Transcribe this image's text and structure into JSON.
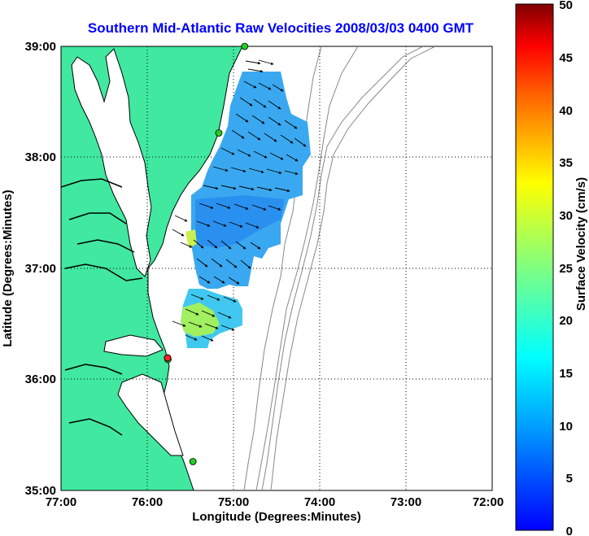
{
  "title": "Southern Mid-Atlantic Raw Velocities 2008/03/03 0400 GMT",
  "xlabel": "Longitude (Degrees:Minutes)",
  "ylabel": "Latitude (Degrees:Minutes)",
  "colorbar": {
    "label": "Surface Velocity (cm/s)",
    "range": [
      0,
      50
    ],
    "ticks": [
      "0",
      "5",
      "10",
      "15",
      "20",
      "25",
      "30",
      "35",
      "40",
      "45",
      "50"
    ]
  },
  "axes": {
    "x_ticks": [
      "77:00",
      "76:00",
      "75:00",
      "74:00",
      "73:00",
      "72:00"
    ],
    "y_ticks": [
      "39:00",
      "38:00",
      "37:00",
      "36:00",
      "35:00"
    ],
    "lon_range": [
      -77,
      -72
    ],
    "lat_range": [
      35,
      39
    ],
    "grid": "dotted"
  },
  "colors": {
    "title": "#0000ff",
    "land": "#40e8a0",
    "coastline": "#000000",
    "bathymetry": "#888888",
    "arrows": "#000000",
    "station_green": "#22cc22",
    "station_red": "#ff2222"
  },
  "stations": [
    {
      "lon": -74.87,
      "lat": 39.0,
      "color": "green"
    },
    {
      "lon": -75.17,
      "lat": 38.22,
      "color": "green"
    },
    {
      "lon": -75.76,
      "lat": 36.18,
      "color": "green"
    },
    {
      "lon": -75.47,
      "lat": 35.26,
      "color": "green"
    }
  ]
}
